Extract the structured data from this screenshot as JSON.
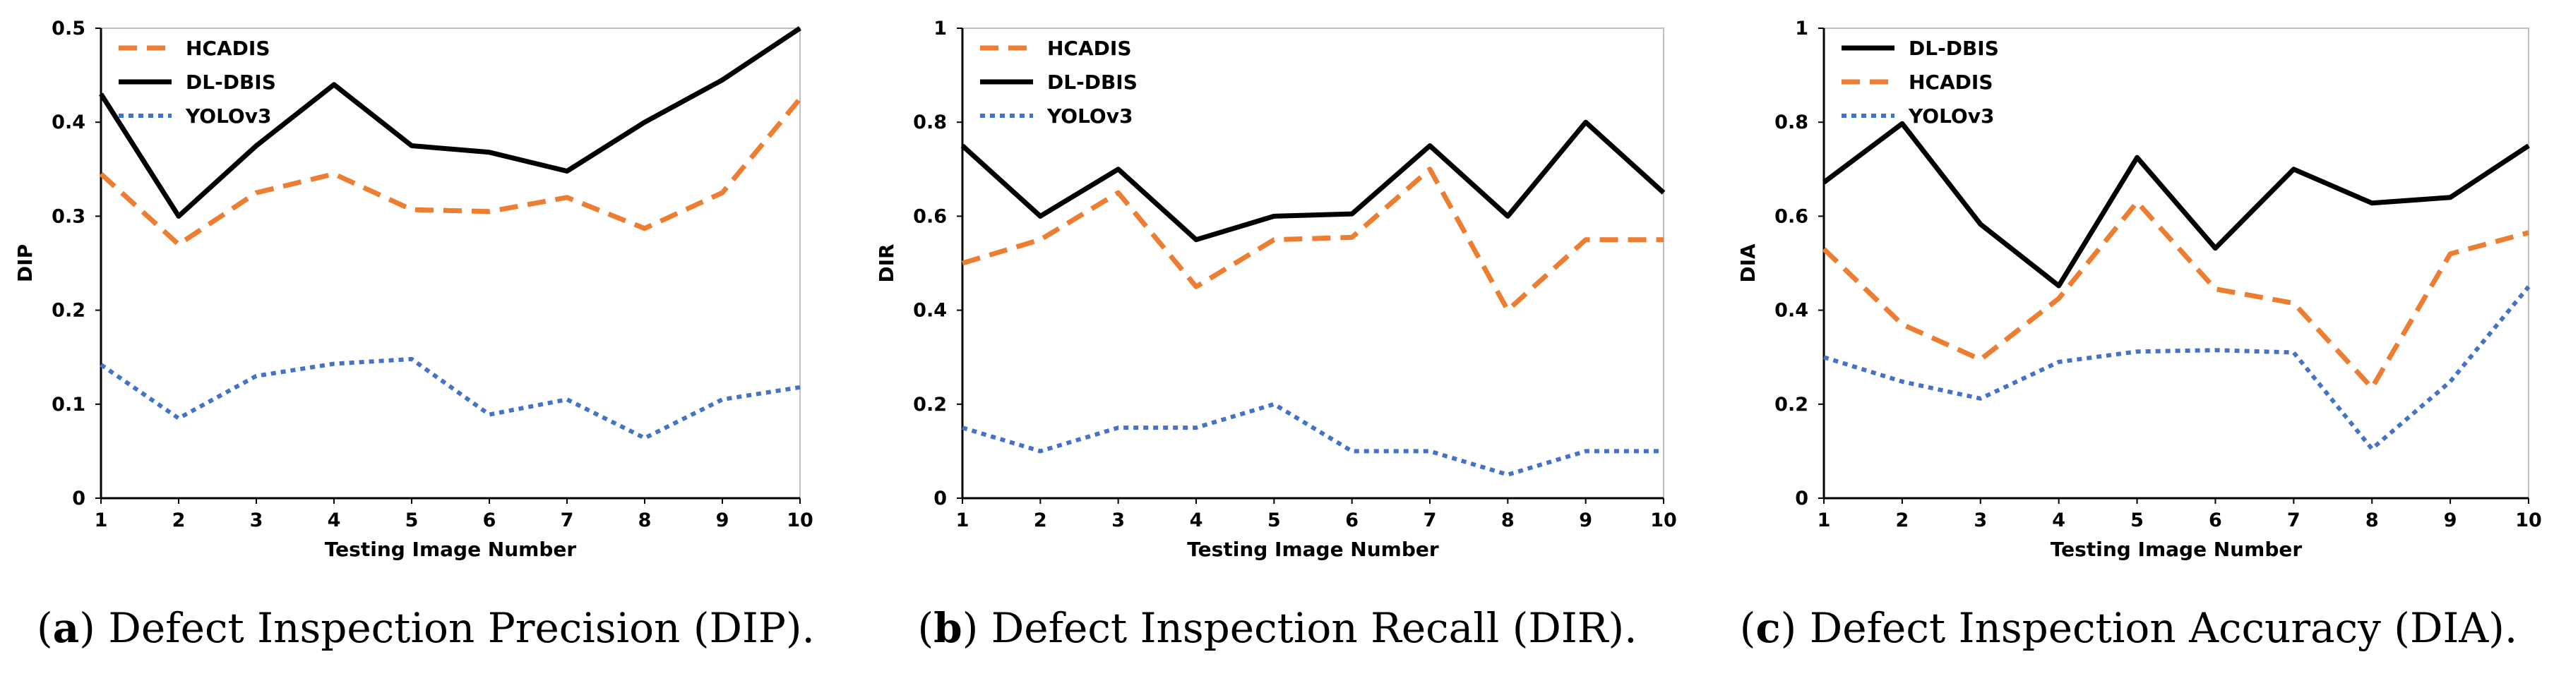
{
  "chart_data": [
    {
      "type": "line",
      "panel_label": "a",
      "caption": "Defect Inspection Precision (DIP).",
      "xlabel": "Testing Image Number",
      "ylabel": "DIP",
      "x": [
        1,
        2,
        3,
        4,
        5,
        6,
        7,
        8,
        9,
        10
      ],
      "ylim": [
        0,
        0.5
      ],
      "yticks": [
        0,
        0.1,
        0.2,
        0.3,
        0.4,
        0.5
      ],
      "ytick_labels": [
        "0",
        "0.1",
        "0.2",
        "0.3",
        "0.4",
        "0.5"
      ],
      "legend_position": "top-left",
      "series": [
        {
          "name": "HCADIS",
          "color": "#ED7D31",
          "style": "dashed",
          "values": [
            0.345,
            0.27,
            0.325,
            0.345,
            0.307,
            0.305,
            0.32,
            0.287,
            0.325,
            0.425
          ]
        },
        {
          "name": "DL-DBIS",
          "color": "#000000",
          "style": "solid",
          "values": [
            0.43,
            0.3,
            0.375,
            0.44,
            0.375,
            0.368,
            0.348,
            0.4,
            0.445,
            0.5
          ]
        },
        {
          "name": "YOLOv3",
          "color": "#4472C4",
          "style": "dotted",
          "values": [
            0.142,
            0.085,
            0.13,
            0.143,
            0.148,
            0.089,
            0.105,
            0.064,
            0.105,
            0.118
          ]
        }
      ]
    },
    {
      "type": "line",
      "panel_label": "b",
      "caption": "Defect Inspection Recall (DIR).",
      "xlabel": "Testing Image Number",
      "ylabel": "DIR",
      "x": [
        1,
        2,
        3,
        4,
        5,
        6,
        7,
        8,
        9,
        10
      ],
      "ylim": [
        0,
        1
      ],
      "yticks": [
        0,
        0.2,
        0.4,
        0.6,
        0.8,
        1
      ],
      "ytick_labels": [
        "0",
        "0.2",
        "0.4",
        "0.6",
        "0.8",
        "1"
      ],
      "legend_position": "top-left",
      "series": [
        {
          "name": "HCADIS",
          "color": "#ED7D31",
          "style": "dashed",
          "values": [
            0.5,
            0.55,
            0.65,
            0.45,
            0.55,
            0.555,
            0.7,
            0.4,
            0.55,
            0.55
          ]
        },
        {
          "name": "DL-DBIS",
          "color": "#000000",
          "style": "solid",
          "values": [
            0.75,
            0.6,
            0.7,
            0.55,
            0.6,
            0.605,
            0.75,
            0.6,
            0.8,
            0.65
          ]
        },
        {
          "name": "YOLOv3",
          "color": "#4472C4",
          "style": "dotted",
          "values": [
            0.15,
            0.1,
            0.15,
            0.15,
            0.2,
            0.1,
            0.1,
            0.05,
            0.1,
            0.1
          ]
        }
      ]
    },
    {
      "type": "line",
      "panel_label": "c",
      "caption": "Defect Inspection Accuracy (DIA).",
      "xlabel": "Testing Image Number",
      "ylabel": "DIA",
      "x": [
        1,
        2,
        3,
        4,
        5,
        6,
        7,
        8,
        9,
        10
      ],
      "ylim": [
        0,
        1
      ],
      "yticks": [
        0,
        0.2,
        0.4,
        0.6,
        0.8,
        1
      ],
      "ytick_labels": [
        "0",
        "0.2",
        "0.4",
        "0.6",
        "0.8",
        "1"
      ],
      "legend_position": "top-left",
      "series": [
        {
          "name": "DL-DBIS",
          "color": "#000000",
          "style": "solid",
          "values": [
            0.672,
            0.797,
            0.583,
            0.452,
            0.725,
            0.532,
            0.7,
            0.628,
            0.64,
            0.75
          ]
        },
        {
          "name": "HCADIS",
          "color": "#ED7D31",
          "style": "dashed",
          "values": [
            0.53,
            0.37,
            0.295,
            0.425,
            0.63,
            0.445,
            0.415,
            0.235,
            0.52,
            0.565
          ]
        },
        {
          "name": "YOLOv3",
          "color": "#4472C4",
          "style": "dotted",
          "values": [
            0.3,
            0.248,
            0.212,
            0.29,
            0.312,
            0.315,
            0.31,
            0.105,
            0.248,
            0.45
          ]
        }
      ]
    }
  ]
}
